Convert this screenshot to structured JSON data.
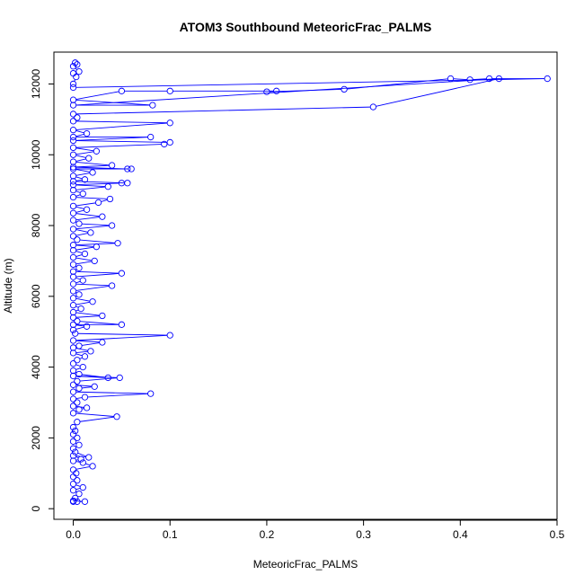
{
  "chart_data": {
    "type": "line",
    "title": "ATOM3 Southbound MeteoricFrac_PALMS",
    "xlabel": "MeteoricFrac_PALMS",
    "ylabel": "Altitude (m)",
    "xlim": [
      -0.02,
      0.5
    ],
    "ylim": [
      -300,
      12900
    ],
    "xticks": [
      0.0,
      0.1,
      0.2,
      0.3,
      0.4,
      0.5
    ],
    "xtick_labels": [
      "0.0",
      "0.1",
      "0.2",
      "0.3",
      "0.4",
      "0.5"
    ],
    "yticks": [
      0,
      2000,
      4000,
      6000,
      8000,
      10000,
      12000
    ],
    "ytick_labels": [
      "0",
      "2000",
      "4000",
      "6000",
      "8000",
      "10000",
      "12000"
    ],
    "grid": false,
    "series": [
      {
        "color": "#0000ff",
        "marker": "open-circle",
        "points": [
          [
            0.0,
            200
          ],
          [
            0.004,
            200
          ],
          [
            0.012,
            200
          ],
          [
            0.0,
            220
          ],
          [
            0.002,
            300
          ],
          [
            0.006,
            420
          ],
          [
            0.0,
            520
          ],
          [
            0.01,
            600
          ],
          [
            0.0,
            700
          ],
          [
            0.004,
            800
          ],
          [
            0.0,
            900
          ],
          [
            0.003,
            1000
          ],
          [
            0.0,
            1100
          ],
          [
            0.02,
            1200
          ],
          [
            0.01,
            1300
          ],
          [
            0.0,
            1350
          ],
          [
            0.008,
            1400
          ],
          [
            0.0,
            1500
          ],
          [
            0.016,
            1450
          ],
          [
            0.002,
            1600
          ],
          [
            0.0,
            1700
          ],
          [
            0.006,
            1800
          ],
          [
            0.0,
            1900
          ],
          [
            0.004,
            2000
          ],
          [
            0.0,
            2100
          ],
          [
            0.002,
            2200
          ],
          [
            0.0,
            2300
          ],
          [
            0.004,
            2450
          ],
          [
            0.045,
            2600
          ],
          [
            0.0,
            2700
          ],
          [
            0.006,
            2800
          ],
          [
            0.014,
            2850
          ],
          [
            0.0,
            2900
          ],
          [
            0.004,
            3000
          ],
          [
            0.0,
            3100
          ],
          [
            0.012,
            3150
          ],
          [
            0.08,
            3250
          ],
          [
            0.0,
            3300
          ],
          [
            0.006,
            3400
          ],
          [
            0.022,
            3450
          ],
          [
            0.0,
            3500
          ],
          [
            0.004,
            3600
          ],
          [
            0.048,
            3700
          ],
          [
            0.0,
            3750
          ],
          [
            0.036,
            3700
          ],
          [
            0.006,
            3800
          ],
          [
            0.0,
            3900
          ],
          [
            0.01,
            4000
          ],
          [
            0.0,
            4100
          ],
          [
            0.004,
            4200
          ],
          [
            0.012,
            4300
          ],
          [
            0.0,
            4400
          ],
          [
            0.018,
            4450
          ],
          [
            0.0,
            4550
          ],
          [
            0.006,
            4600
          ],
          [
            0.03,
            4700
          ],
          [
            0.0,
            4750
          ],
          [
            0.1,
            4900
          ],
          [
            0.002,
            4950
          ],
          [
            0.0,
            5050
          ],
          [
            0.014,
            5150
          ],
          [
            0.0,
            5200
          ],
          [
            0.05,
            5200
          ],
          [
            0.004,
            5300
          ],
          [
            0.0,
            5400
          ],
          [
            0.03,
            5450
          ],
          [
            0.0,
            5550
          ],
          [
            0.008,
            5650
          ],
          [
            0.0,
            5750
          ],
          [
            0.02,
            5850
          ],
          [
            0.0,
            5950
          ],
          [
            0.006,
            6050
          ],
          [
            0.0,
            6150
          ],
          [
            0.04,
            6300
          ],
          [
            0.0,
            6350
          ],
          [
            0.01,
            6450
          ],
          [
            0.0,
            6550
          ],
          [
            0.05,
            6650
          ],
          [
            0.0,
            6700
          ],
          [
            0.006,
            6800
          ],
          [
            0.0,
            6900
          ],
          [
            0.022,
            7000
          ],
          [
            0.0,
            7100
          ],
          [
            0.012,
            7200
          ],
          [
            0.0,
            7300
          ],
          [
            0.024,
            7400
          ],
          [
            0.0,
            7450
          ],
          [
            0.046,
            7500
          ],
          [
            0.004,
            7600
          ],
          [
            0.0,
            7700
          ],
          [
            0.018,
            7800
          ],
          [
            0.0,
            7900
          ],
          [
            0.04,
            8000
          ],
          [
            0.006,
            8050
          ],
          [
            0.0,
            8150
          ],
          [
            0.03,
            8250
          ],
          [
            0.0,
            8350
          ],
          [
            0.014,
            8450
          ],
          [
            0.0,
            8550
          ],
          [
            0.026,
            8650
          ],
          [
            0.038,
            8750
          ],
          [
            0.0,
            8800
          ],
          [
            0.01,
            8900
          ],
          [
            0.0,
            9000
          ],
          [
            0.036,
            9100
          ],
          [
            0.0,
            9150
          ],
          [
            0.05,
            9200
          ],
          [
            0.056,
            9200
          ],
          [
            0.0,
            9250
          ],
          [
            0.012,
            9300
          ],
          [
            0.0,
            9400
          ],
          [
            0.02,
            9500
          ],
          [
            0.0,
            9600
          ],
          [
            0.06,
            9600
          ],
          [
            0.056,
            9600
          ],
          [
            0.0,
            9650
          ],
          [
            0.04,
            9700
          ],
          [
            0.0,
            9800
          ],
          [
            0.016,
            9900
          ],
          [
            0.0,
            10000
          ],
          [
            0.024,
            10100
          ],
          [
            0.0,
            10200
          ],
          [
            0.094,
            10300
          ],
          [
            0.1,
            10350
          ],
          [
            0.0,
            10400
          ],
          [
            0.08,
            10500
          ],
          [
            0.0,
            10500
          ],
          [
            0.014,
            10600
          ],
          [
            0.0,
            10700
          ],
          [
            0.1,
            10900
          ],
          [
            0.0,
            10950
          ],
          [
            0.004,
            11050
          ],
          [
            0.0,
            11150
          ],
          [
            0.31,
            11350
          ],
          [
            0.44,
            12150
          ],
          [
            0.0,
            11400
          ],
          [
            0.082,
            11400
          ],
          [
            0.0,
            11550
          ],
          [
            0.05,
            11800
          ],
          [
            0.1,
            11800
          ],
          [
            0.21,
            11800
          ],
          [
            0.2,
            11780
          ],
          [
            0.28,
            11850
          ],
          [
            0.39,
            12150
          ],
          [
            0.41,
            12120
          ],
          [
            0.43,
            12150
          ],
          [
            0.49,
            12150
          ],
          [
            0.0,
            11900
          ],
          [
            0.0,
            12000
          ],
          [
            0.003,
            12200
          ],
          [
            0.0,
            12300
          ],
          [
            0.006,
            12350
          ],
          [
            0.0,
            12500
          ],
          [
            0.004,
            12550
          ],
          [
            0.002,
            12600
          ]
        ]
      }
    ]
  }
}
